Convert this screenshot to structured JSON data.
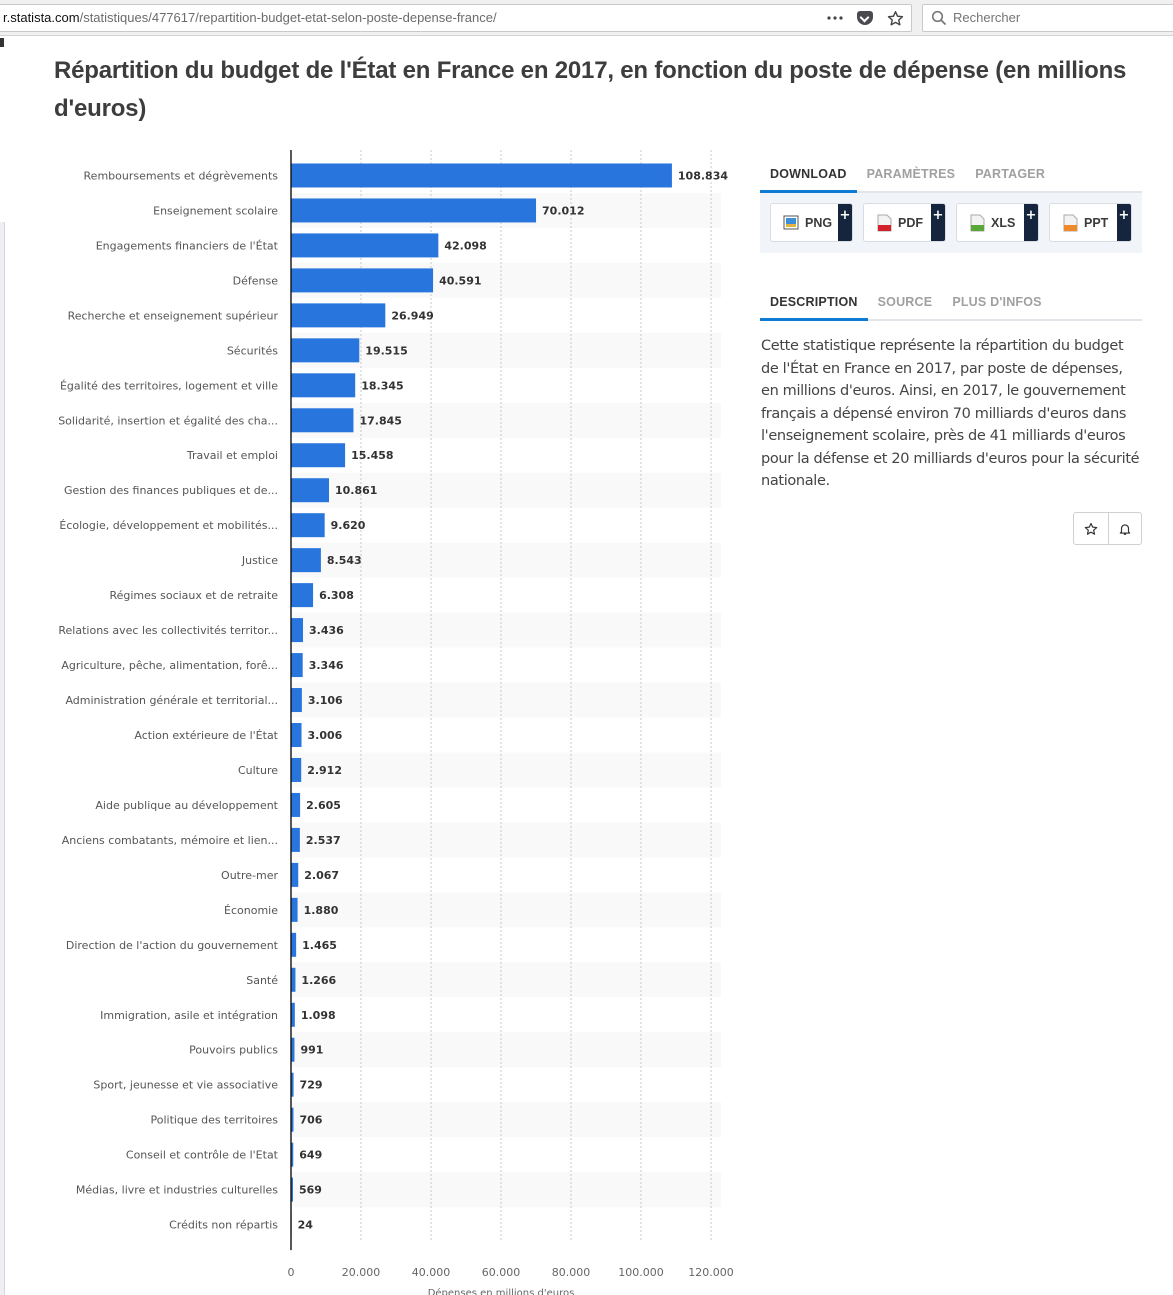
{
  "browser": {
    "url_host": "r.statista.com",
    "url_path": "/statistiques/477617/repartition-budget-etat-selon-poste-depense-france/",
    "more_icon": "ellipsis-icon",
    "pocket_icon": "pocket-icon",
    "bookmark_icon": "star-icon",
    "search_placeholder": "Rechercher"
  },
  "page": {
    "title": "Répartition du budget de l'État en France en 2017, en fonction du poste de dépense (en millions d'euros)"
  },
  "side_panel": {
    "tabs": [
      {
        "label": "DOWNLOAD",
        "active": true
      },
      {
        "label": "PARAMÈTRES",
        "active": false
      },
      {
        "label": "PARTAGER",
        "active": false
      }
    ],
    "downloads": [
      {
        "label": "PNG",
        "icon": "image-file-icon",
        "plus": "+"
      },
      {
        "label": "PDF",
        "icon": "pdf-file-icon",
        "plus": "+"
      },
      {
        "label": "XLS",
        "icon": "excel-file-icon",
        "plus": "+"
      },
      {
        "label": "PPT",
        "icon": "powerpoint-file-icon",
        "plus": "+"
      }
    ],
    "info_tabs": [
      {
        "label": "DESCRIPTION",
        "active": true
      },
      {
        "label": "SOURCE",
        "active": false
      },
      {
        "label": "PLUS D'INFOS",
        "active": false
      }
    ],
    "description": "Cette statistique représente la répartition du budget de l'État en France en 2017, par poste de dépenses, en millions d'euros. Ainsi, en 2017, le gouvernement français a dépensé environ 70 milliards d'euros dans l'enseignement scolaire, près de 41 milliards d'euros pour la défense et 20 milliards d'euros pour la sécurité nationale.",
    "actions": [
      {
        "icon": "star-icon"
      },
      {
        "icon": "bell-icon"
      }
    ]
  },
  "colors": {
    "bar": "#2876dd",
    "accent": "#0d7ad4",
    "stripe": "#f9f9f9",
    "title": "#3d3d3d"
  },
  "chart_data": {
    "type": "bar",
    "orientation": "horizontal",
    "title": "Répartition du budget de l'État en France en 2017, en fonction du poste de dépense (en millions d'euros)",
    "xlabel": "Dépenses en millions d'euros",
    "ylabel": "",
    "xlim": [
      0,
      120000
    ],
    "xticks": [
      0,
      20000,
      40000,
      60000,
      80000,
      100000,
      120000
    ],
    "xtick_labels": [
      "0",
      "20.000",
      "40.000",
      "60.000",
      "80.000",
      "100.000",
      "120.000"
    ],
    "grid": "vertical dotted",
    "categories": [
      "Remboursements et dégrèvements",
      "Enseignement scolaire",
      "Engagements financiers de l'État",
      "Défense",
      "Recherche et enseignement supérieur",
      "Sécurités",
      "Égalité des territoires, logement et ville",
      "Solidarité, insertion et égalité des cha...",
      "Travail et emploi",
      "Gestion des finances publiques et de...",
      "Écologie, développement et mobilités...",
      "Justice",
      "Régimes sociaux et de retraite",
      "Relations avec les collectivités territor...",
      "Agriculture, pêche, alimentation, forê...",
      "Administration générale et territorial...",
      "Action extérieure de l'État",
      "Culture",
      "Aide publique au développement",
      "Anciens combatants, mémoire et lien...",
      "Outre-mer",
      "Économie",
      "Direction de l'action du gouvernement",
      "Santé",
      "Immigration, asile et intégration",
      "Pouvoirs publics",
      "Sport, jeunesse et vie associative",
      "Politique des territoires",
      "Conseil et contrôle de l'Etat",
      "Médias, livre et industries culturelles",
      "Crédits non répartis"
    ],
    "values": [
      108834,
      70012,
      42098,
      40591,
      26949,
      19515,
      18345,
      17845,
      15458,
      10861,
      9620,
      8543,
      6308,
      3436,
      3346,
      3106,
      3006,
      2912,
      2605,
      2537,
      2067,
      1880,
      1465,
      1266,
      1098,
      991,
      729,
      706,
      649,
      569,
      24
    ],
    "value_labels": [
      "108.834",
      "70.012",
      "42.098",
      "40.591",
      "26.949",
      "19.515",
      "18.345",
      "17.845",
      "15.458",
      "10.861",
      "9.620",
      "8.543",
      "6.308",
      "3.436",
      "3.346",
      "3.106",
      "3.006",
      "2.912",
      "2.605",
      "2.537",
      "2.067",
      "1.880",
      "1.465",
      "1.266",
      "1.098",
      "991",
      "729",
      "706",
      "649",
      "569",
      "24"
    ]
  }
}
